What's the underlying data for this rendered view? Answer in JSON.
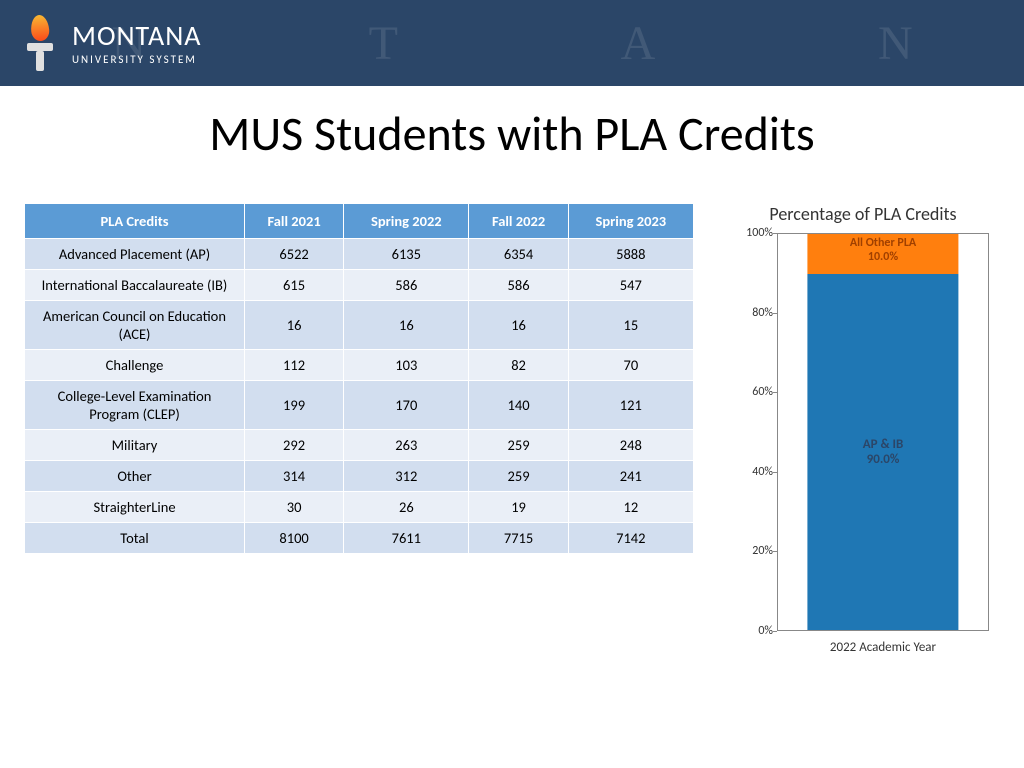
{
  "brand": {
    "main": "MONTANA",
    "sub": "UNIVERSITY SYSTEM"
  },
  "title": "MUS Students with PLA Credits",
  "table": {
    "columns": [
      "PLA Credits",
      "Fall 2021",
      "Spring 2022",
      "Fall 2022",
      "Spring 2023"
    ],
    "rows": [
      [
        "Advanced Placement (AP)",
        "6522",
        "6135",
        "6354",
        "5888"
      ],
      [
        "International Baccalaureate (IB)",
        "615",
        "586",
        "586",
        "547"
      ],
      [
        "American Council on Education (ACE)",
        "16",
        "16",
        "16",
        "15"
      ],
      [
        "Challenge",
        "112",
        "103",
        "82",
        "70"
      ],
      [
        "College-Level Examination Program (CLEP)",
        "199",
        "170",
        "140",
        "121"
      ],
      [
        "Military",
        "292",
        "263",
        "259",
        "248"
      ],
      [
        "Other",
        "314",
        "312",
        "259",
        "241"
      ],
      [
        "StraighterLine",
        "30",
        "26",
        "19",
        "12"
      ],
      [
        "Total",
        "8100",
        "7611",
        "7715",
        "7142"
      ]
    ],
    "header_bg": "#5b9bd5",
    "row_odd_bg": "#d2deef",
    "row_even_bg": "#eaeff7"
  },
  "chart": {
    "type": "stacked-bar",
    "title": "Percentage of PLA Credits",
    "xlabel": "2022 Academic Year",
    "ylim": [
      0,
      100
    ],
    "yticks": [
      0,
      20,
      40,
      60,
      80,
      100
    ],
    "ytick_format": "%",
    "background_color": "#ffffff",
    "axis_color": "#888888",
    "label_fontsize": 13,
    "segments": [
      {
        "label": "AP & IB",
        "sublabel": "90.0%",
        "value": 90.0,
        "color": "#1f77b4",
        "text_color": "#2b4668"
      },
      {
        "label": "All Other PLA",
        "sublabel": "10.0%",
        "value": 10.0,
        "color": "#ff7f0e",
        "text_color": "#a04000"
      }
    ]
  },
  "header": {
    "bg_color": "#2b4668",
    "ghost_letters": [
      "N",
      "T",
      "A",
      "N"
    ]
  }
}
